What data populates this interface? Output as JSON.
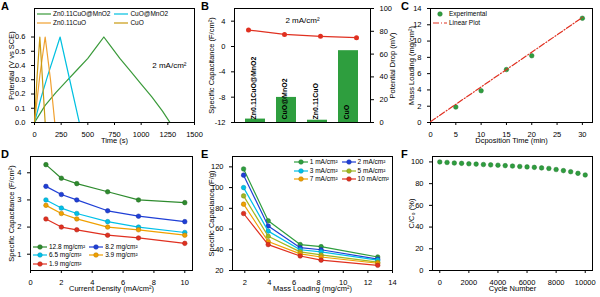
{
  "chart_data": [
    {
      "type": "line",
      "title": "A",
      "xlabel": "Time (s)",
      "ylabel": "Potential (V vs SCE)",
      "annotations": [
        "2 mA/cm²"
      ],
      "xlim": [
        0,
        1500
      ],
      "xticks": [
        0,
        250,
        500,
        750,
        1000,
        1250,
        1500
      ],
      "ylim": [
        0,
        0.8
      ],
      "yticks": [
        {
          "value": 0,
          "label": "0.0"
        },
        {
          "value": 0.1,
          "label": "0.1"
        },
        {
          "value": 0.2,
          "label": "0.2"
        },
        {
          "value": 0.3,
          "label": "0.3"
        },
        {
          "value": 0.4,
          "label": "0.4"
        },
        {
          "value": 0.5,
          "label": "0.5"
        },
        {
          "value": 0.6,
          "label": "0.6"
        }
      ],
      "legend": "top-left",
      "series": [
        {
          "name": "Zn0.11CuO@MnO2",
          "color": "#3a9a3a",
          "x": [
            0,
            100,
            200,
            300,
            400,
            500,
            600,
            650,
            700,
            800,
            900,
            1000,
            1100,
            1200,
            1270
          ],
          "values": [
            0,
            0.12,
            0.21,
            0.29,
            0.37,
            0.45,
            0.55,
            0.6,
            0.55,
            0.45,
            0.36,
            0.27,
            0.18,
            0.08,
            0
          ]
        },
        {
          "name": "CuO@MnO2",
          "color": "#00c0e0",
          "x": [
            0,
            60,
            120,
            180,
            240,
            300,
            360,
            420
          ],
          "values": [
            0,
            0.17,
            0.32,
            0.46,
            0.6,
            0.4,
            0.2,
            0
          ]
        },
        {
          "name": "Zn0.11CuO",
          "color": "#f0a030",
          "x": [
            0,
            50,
            100,
            150,
            190
          ],
          "values": [
            0,
            0.33,
            0.6,
            0.3,
            0
          ]
        },
        {
          "name": "CuO",
          "color": "#c89a10",
          "x": [
            0,
            25,
            50,
            75,
            100
          ],
          "values": [
            0,
            0.33,
            0.6,
            0.3,
            0
          ]
        }
      ]
    },
    {
      "type": "bar",
      "title": "B",
      "ylabel": "Specific Capacitance (F/cm²)",
      "y2label": "Potential Drop (mV)",
      "annotations": [
        "2 mA/cm²"
      ],
      "categories": [
        "Zn0.11CuO@MnO2",
        "CuO@MnO2",
        "Zn0.11CuO",
        "CuO"
      ],
      "ylim": [
        -12,
        6
      ],
      "yticks": [
        -12,
        -8,
        -4,
        0,
        4
      ],
      "y2lim": [
        0,
        100
      ],
      "y2ticks": [
        0,
        20,
        40,
        60,
        80,
        100
      ],
      "tick_labels": "y",
      "series": [
        {
          "type": "bar",
          "axis": "y2",
          "color": "#2e9e3e",
          "values": [
            3,
            22,
            2,
            63
          ]
        },
        {
          "type": "line",
          "color": "#e03020",
          "marker": "circle",
          "values": [
            2.6,
            1.9,
            1.6,
            1.4
          ]
        }
      ]
    },
    {
      "type": "scatter",
      "title": "C",
      "xlabel": "Dcposition Time (min)",
      "ylabel": "Mass Loading (mg/cm²)",
      "xlim": [
        0,
        32
      ],
      "xticks": [
        0,
        5,
        10,
        15,
        20,
        25,
        30
      ],
      "ylim": [
        0,
        14
      ],
      "yticks": [
        0,
        2,
        4,
        6,
        8,
        10,
        12,
        14
      ],
      "legend": "top-left",
      "series": [
        {
          "name": "Experimental",
          "type": "scatter",
          "marker": "circle",
          "color": "#2e9e3e",
          "x": [
            5,
            10,
            15,
            20,
            30
          ],
          "values": [
            1.9,
            3.9,
            6.5,
            8.2,
            12.8
          ]
        },
        {
          "name": "Linear Plot",
          "type": "line",
          "line_style": "dashdot",
          "color": "#e03020",
          "x": [
            0,
            30
          ],
          "values": [
            0.1,
            12.9
          ]
        }
      ]
    },
    {
      "type": "line",
      "title": "D",
      "xlabel": "Current Density (mA/cm²)",
      "ylabel": "Specific Capacitance (F/cm²)",
      "xlim": [
        0,
        10.5
      ],
      "xticks": [
        0,
        2,
        4,
        6,
        8,
        10
      ],
      "ylim": [
        0.4,
        4.6
      ],
      "yticks": [
        1,
        2,
        3,
        4
      ],
      "legend": "bottom-left",
      "x": [
        1,
        2,
        3,
        5,
        7,
        10
      ],
      "series": [
        {
          "name": "12.8 mg/cm²",
          "color": "#2e8b2e",
          "marker": "circle",
          "values": [
            4.3,
            3.8,
            3.6,
            3.3,
            3.0,
            2.9
          ]
        },
        {
          "name": "8.2 mg/cm²",
          "color": "#1f3fd6",
          "marker": "circle",
          "values": [
            3.5,
            3.2,
            3.0,
            2.6,
            2.4,
            2.2
          ]
        },
        {
          "name": "6.5 mg/cm²",
          "color": "#00c0e8",
          "marker": "circle",
          "values": [
            3.0,
            2.7,
            2.5,
            2.2,
            2.0,
            1.8
          ]
        },
        {
          "name": "3.9 mg/cm²",
          "color": "#f0a000",
          "marker": "circle",
          "values": [
            2.8,
            2.5,
            2.3,
            2.0,
            1.9,
            1.7
          ]
        },
        {
          "name": "1.9 mg/cm²",
          "color": "#e03020",
          "marker": "circle",
          "values": [
            2.3,
            2.0,
            1.9,
            1.7,
            1.6,
            1.4
          ]
        }
      ]
    },
    {
      "type": "line",
      "title": "E",
      "xlabel": "Mass Loading (mg/cm²)",
      "ylabel": "Specific Capaciance (F/g)",
      "xlim": [
        1,
        14
      ],
      "xticks": [
        2,
        4,
        6,
        8,
        10,
        12,
        14
      ],
      "ylim": [
        20,
        130
      ],
      "yticks": [
        20,
        40,
        60,
        80,
        100,
        120
      ],
      "legend": "top-right",
      "x": [
        1.9,
        3.9,
        6.5,
        8.2,
        12.8
      ],
      "series": [
        {
          "name": "1 mA/cm²",
          "color": "#2e9e3e",
          "marker": "circle",
          "values": [
            118,
            68,
            45,
            43,
            33
          ]
        },
        {
          "name": "2 mA/cm²",
          "color": "#1f3fd6",
          "marker": "circle",
          "values": [
            112,
            63,
            42,
            40,
            31
          ]
        },
        {
          "name": "3 mA/cm²",
          "color": "#00c0e8",
          "marker": "circle",
          "values": [
            100,
            58,
            40,
            38,
            30
          ]
        },
        {
          "name": "5 mA/cm²",
          "color": "#a0b820",
          "marker": "circle",
          "values": [
            92,
            53,
            38,
            35,
            28
          ]
        },
        {
          "name": "7 mA/cm²",
          "color": "#f0a000",
          "marker": "circle",
          "values": [
            84,
            48,
            36,
            33,
            27
          ]
        },
        {
          "name": "10 mA/cm²",
          "color": "#e03020",
          "marker": "circle",
          "values": [
            75,
            45,
            34,
            30,
            25
          ]
        }
      ]
    },
    {
      "type": "scatter",
      "title": "F",
      "xlabel": "Cycle Number",
      "ylabel": "C/C₀ (%)",
      "xlim": [
        -500,
        10500
      ],
      "xticks": [
        0,
        2000,
        4000,
        6000,
        8000,
        10000
      ],
      "ylim": [
        0,
        105
      ],
      "yticks": [
        0,
        20,
        40,
        60,
        80,
        100
      ],
      "series": [
        {
          "type": "scatter",
          "marker": "circle",
          "color": "#2e9e3e",
          "x": [
            0,
            500,
            1000,
            1500,
            2000,
            2500,
            3000,
            3500,
            4000,
            4500,
            5000,
            5500,
            6000,
            6500,
            7000,
            7500,
            8000,
            8500,
            9000,
            9500,
            10000
          ],
          "values": [
            100,
            99.5,
            99,
            98.7,
            98.3,
            98,
            97.6,
            97.3,
            97,
            96.6,
            96.2,
            95.8,
            95.4,
            95,
            94.5,
            94,
            93,
            92,
            91,
            89.5,
            88
          ]
        }
      ]
    }
  ]
}
